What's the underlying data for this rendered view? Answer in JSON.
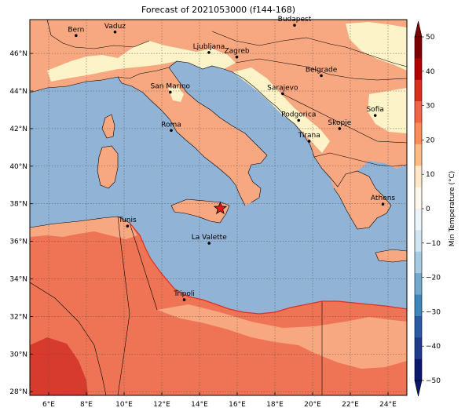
{
  "title": "Forecast of 2021053000 (f144-168)",
  "map": {
    "lon_range": [
      5,
      25
    ],
    "lat_range": [
      27.8,
      47.8
    ],
    "x_ticks": [
      "6°E",
      "8°E",
      "10°E",
      "12°E",
      "14°E",
      "16°E",
      "18°E",
      "20°E",
      "22°E",
      "24°E"
    ],
    "y_ticks": [
      "46°N",
      "44°N",
      "42°N",
      "40°N",
      "38°N",
      "36°N",
      "34°N",
      "32°N",
      "30°N",
      "28°N"
    ],
    "grid": true,
    "colors": {
      "sea": "#91b3d6",
      "land_10_20": "#f8a880",
      "land_20_30": "#ef7455",
      "land_30_40": "#d73b2d",
      "land_0_10": "#fcf3c8",
      "marker": "#e3171c"
    },
    "cities": [
      {
        "name": "Bern",
        "lon": 7.45,
        "lat": 46.95
      },
      {
        "name": "Vaduz",
        "lon": 9.52,
        "lat": 47.14
      },
      {
        "name": "Budapest",
        "lon": 19.04,
        "lat": 47.5
      },
      {
        "name": "Ljubljana",
        "lon": 14.5,
        "lat": 46.05
      },
      {
        "name": "Zagreb",
        "lon": 15.98,
        "lat": 45.81
      },
      {
        "name": "Belgrade",
        "lon": 20.46,
        "lat": 44.82
      },
      {
        "name": "San Marino",
        "lon": 12.45,
        "lat": 43.94
      },
      {
        "name": "Sarajevo",
        "lon": 18.41,
        "lat": 43.86
      },
      {
        "name": "Sofia",
        "lon": 23.32,
        "lat": 42.7
      },
      {
        "name": "Roma",
        "lon": 12.5,
        "lat": 41.9
      },
      {
        "name": "Podgorica",
        "lon": 19.26,
        "lat": 42.44
      },
      {
        "name": "Skopje",
        "lon": 21.43,
        "lat": 42.0
      },
      {
        "name": "Tirana",
        "lon": 19.82,
        "lat": 41.33
      },
      {
        "name": "Athens",
        "lon": 23.73,
        "lat": 37.98
      },
      {
        "name": "Tunis",
        "lon": 10.18,
        "lat": 36.81
      },
      {
        "name": "La Valette",
        "lon": 14.51,
        "lat": 35.9
      },
      {
        "name": "Tripoli",
        "lon": 13.19,
        "lat": 32.89
      }
    ],
    "star_marker": {
      "lon": 15.1,
      "lat": 37.75
    }
  },
  "colorbar": {
    "label": "Min Temperature (°C)",
    "ticks": [
      "50",
      "40",
      "30",
      "20",
      "10",
      "0",
      "−10",
      "−20",
      "−30",
      "−40",
      "−50"
    ],
    "colors": [
      "#7f0000",
      "#b30000",
      "#d7301f",
      "#ef6548",
      "#fc8d59",
      "#fdbb84",
      "#fee8c8",
      "#fff7ec",
      "#ecf5fa",
      "#d0e4f1",
      "#a6cce3",
      "#74a9cf",
      "#3f86bb",
      "#2b5aa4",
      "#1f3b8c",
      "#0b1870"
    ]
  }
}
